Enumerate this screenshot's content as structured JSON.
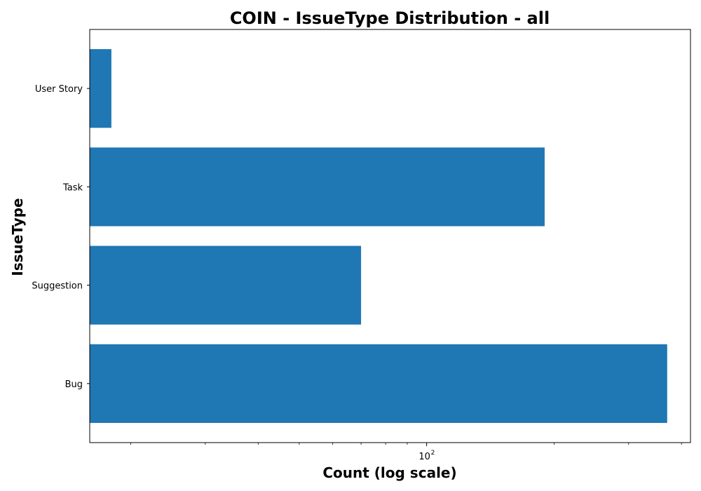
{
  "chart_data": {
    "type": "bar",
    "orientation": "horizontal",
    "title": "COIN - IssueType Distribution - all",
    "xlabel": "Count (log scale)",
    "ylabel": "IssueType",
    "x_scale": "log",
    "xlim": [
      16,
      420
    ],
    "categories": [
      "Bug",
      "Suggestion",
      "Task",
      "User Story"
    ],
    "values": [
      370,
      70,
      190,
      18
    ],
    "x_major_ticks": [
      100
    ],
    "x_major_tick_labels": [
      {
        "base": "10",
        "exponent": "2"
      }
    ],
    "x_minor_ticks": [
      20,
      30,
      40,
      50,
      60,
      70,
      80,
      90,
      200,
      300,
      400
    ],
    "grid": false,
    "colors": {
      "bar": "#1f77b4",
      "axis": "#000000",
      "background": "#ffffff"
    }
  }
}
